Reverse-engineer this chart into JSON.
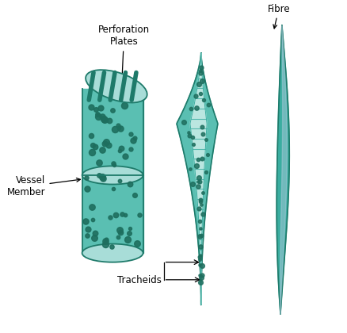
{
  "bg_color": "#ffffff",
  "teal_fill": "#5abfb2",
  "teal_dark": "#1e7a6a",
  "teal_mid": "#3aada0",
  "teal_light": "#a8ddd8",
  "teal_lighter": "#cceee9",
  "teal_deep": "#2a9080",
  "dot_color": "#1e6e5e",
  "fibre_center": "#a8c8d8",
  "labels": {
    "perforation_plates": "Perforation\nPlates",
    "vessel_member": "Vessel\nMember",
    "tracheids": "Tracheids",
    "fibre": "Fibre"
  },
  "figsize": [
    4.39,
    4.2
  ],
  "dpi": 100
}
